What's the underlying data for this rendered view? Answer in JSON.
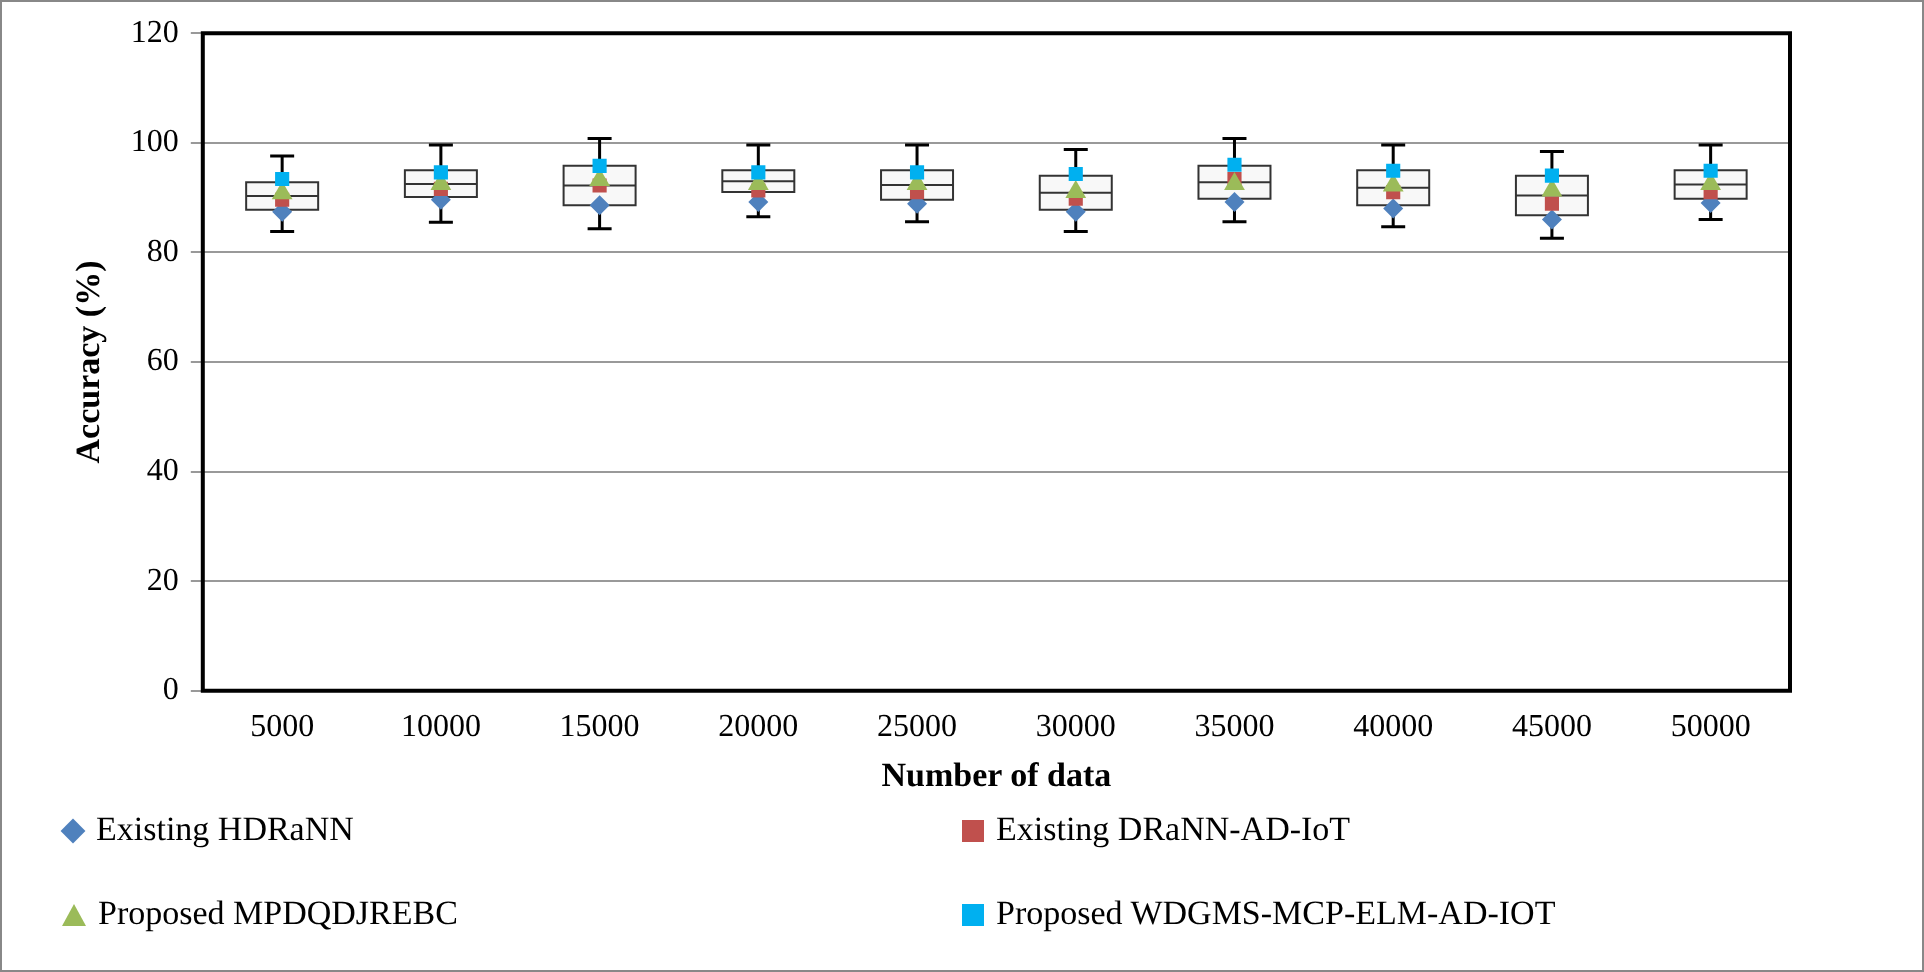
{
  "chart_data": {
    "type": "box",
    "xlabel": "Number of data",
    "ylabel": "Accuracy (%)",
    "categories": [
      "5000",
      "10000",
      "15000",
      "20000",
      "25000",
      "30000",
      "35000",
      "40000",
      "45000",
      "50000"
    ],
    "boxes": [
      {
        "low": 83.8,
        "q1": 87.8,
        "median": 90.3,
        "q3": 92.8,
        "high": 97.6
      },
      {
        "low": 85.5,
        "q1": 90.1,
        "median": 92.5,
        "q3": 95.0,
        "high": 99.6
      },
      {
        "low": 84.3,
        "q1": 88.6,
        "median": 92.2,
        "q3": 95.8,
        "high": 100.8
      },
      {
        "low": 86.5,
        "q1": 91.0,
        "median": 93.0,
        "q3": 95.0,
        "high": 99.6
      },
      {
        "low": 85.6,
        "q1": 89.6,
        "median": 92.3,
        "q3": 95.0,
        "high": 99.6
      },
      {
        "low": 83.8,
        "q1": 87.8,
        "median": 90.9,
        "q3": 94.0,
        "high": 98.8
      },
      {
        "low": 85.6,
        "q1": 89.8,
        "median": 92.8,
        "q3": 95.8,
        "high": 100.8
      },
      {
        "low": 84.7,
        "q1": 88.6,
        "median": 91.8,
        "q3": 95.0,
        "high": 99.6
      },
      {
        "low": 82.6,
        "q1": 86.8,
        "median": 90.4,
        "q3": 94.0,
        "high": 98.4
      },
      {
        "low": 86.0,
        "q1": 89.8,
        "median": 92.4,
        "q3": 95.0,
        "high": 99.6
      }
    ],
    "series": [
      {
        "name": "Existing HDRaNN",
        "type": "scatter",
        "marker": "diamond",
        "color": "#4f81bd",
        "values": [
          87.4,
          89.6,
          88.6,
          89.2,
          88.9,
          87.4,
          89.2,
          88.0,
          86.0,
          89.0
        ]
      },
      {
        "name": "Existing DRaNN-AD-IoT",
        "type": "scatter",
        "marker": "square",
        "color": "#c0504d",
        "values": [
          89.6,
          91.6,
          92.2,
          91.3,
          91.0,
          89.8,
          93.4,
          91.0,
          88.9,
          91.0
        ]
      },
      {
        "name": "Proposed MPDQDJREBC",
        "type": "scatter",
        "marker": "triangle",
        "color": "#9bbb59",
        "values": [
          90.8,
          92.5,
          93.2,
          92.5,
          92.5,
          91.0,
          92.5,
          92.2,
          91.3,
          92.5
        ]
      },
      {
        "name": "Proposed WDGMS-MCP-ELM-AD-IOT",
        "type": "scatter",
        "marker": "square",
        "color": "#00b0f0",
        "values": [
          93.4,
          94.6,
          95.8,
          94.6,
          94.6,
          94.3,
          96.0,
          94.9,
          94.0,
          94.9
        ]
      }
    ],
    "ylim": [
      0,
      120
    ],
    "yticks": [
      0,
      20,
      40,
      60,
      80,
      100,
      120
    ],
    "grid": "y",
    "legend": "bottom"
  }
}
